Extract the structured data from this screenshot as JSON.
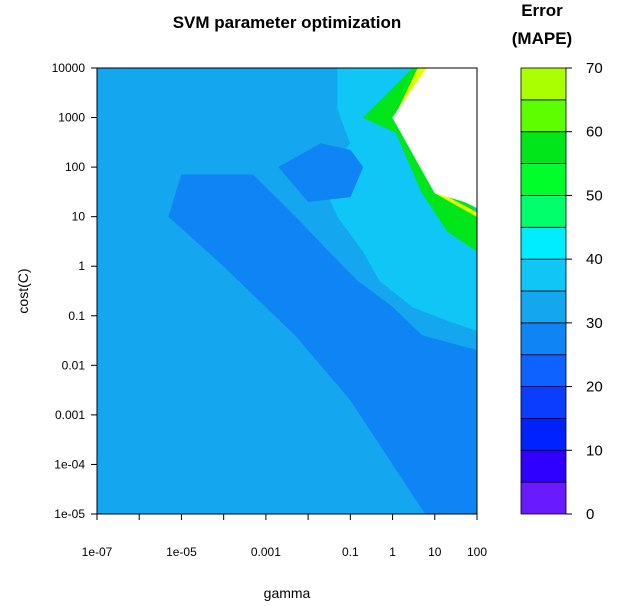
{
  "chart_data": {
    "type": "heatmap",
    "title": "SVM parameter optimization",
    "xlabel": "gamma",
    "ylabel": "cost(C)",
    "colorbar_title": [
      "Error",
      "(MAPE)"
    ],
    "x_scale": "log",
    "y_scale": "log",
    "xlim": [
      1e-07,
      100
    ],
    "ylim": [
      1e-05,
      10000
    ],
    "x_ticks": [
      "1e-07",
      "1e-05",
      "0.001",
      "0.1",
      "1",
      "10",
      "100"
    ],
    "x_tick_values": [
      1e-07,
      1e-05,
      0.001,
      0.1,
      1,
      10,
      100
    ],
    "x_minor_ticks": [
      1e-06,
      0.0001,
      0.01
    ],
    "y_ticks": [
      "1e-05",
      "1e-04",
      "0.001",
      "0.01",
      "0.1",
      "1",
      "10",
      "100",
      "1000",
      "10000"
    ],
    "y_tick_values": [
      1e-05,
      0.0001,
      0.001,
      0.01,
      0.1,
      1,
      10,
      100,
      1000,
      10000
    ],
    "colorbar_levels": [
      0,
      5,
      10,
      15,
      20,
      25,
      30,
      35,
      40,
      45,
      50,
      55,
      60,
      65,
      70
    ],
    "colorbar_ticks": [
      "0",
      "10",
      "20",
      "30",
      "40",
      "50",
      "60",
      "70"
    ],
    "colorbar_tick_values": [
      0,
      10,
      20,
      30,
      40,
      50,
      60,
      70
    ],
    "colorbar_colors": [
      "#6a1aff",
      "#2f00ff",
      "#0022ff",
      "#0a3dff",
      "#0e62ff",
      "#0f85f5",
      "#14a6ef",
      "#0fc6f6",
      "#00ecff",
      "#00ff6a",
      "#00ff2a",
      "#00e61a",
      "#5dff00",
      "#aaff00",
      "#e6ff00"
    ],
    "regions": [
      {
        "range": "30-35",
        "color": "#14a6ef",
        "polygon": [
          [
            1e-07,
            1e-05
          ],
          [
            100,
            1e-05
          ],
          [
            100,
            10000
          ],
          [
            1e-07,
            10000
          ]
        ]
      },
      {
        "range": "35-40",
        "color": "#0fc6f6",
        "polygon": [
          [
            0.05,
            10000
          ],
          [
            100,
            10000
          ],
          [
            100,
            0.05
          ],
          [
            20,
            0.08
          ],
          [
            3,
            0.15
          ],
          [
            0.5,
            0.5
          ],
          [
            0.2,
            2
          ],
          [
            0.05,
            10
          ],
          [
            0.02,
            60
          ],
          [
            0.1,
            300
          ],
          [
            0.05,
            1500
          ]
        ]
      },
      {
        "range": "25-30",
        "color": "#0f85f5",
        "polygon": [
          [
            5e-06,
            10
          ],
          [
            1e-05,
            70
          ],
          [
            0.0005,
            70
          ],
          [
            0.005,
            10
          ],
          [
            0.03,
            2
          ],
          [
            0.15,
            0.5
          ],
          [
            1,
            0.15
          ],
          [
            5,
            0.04
          ],
          [
            100,
            0.02
          ],
          [
            100,
            1e-05
          ],
          [
            6,
            1e-05
          ],
          [
            0.1,
            0.002
          ],
          [
            0.005,
            0.04
          ],
          [
            0.0001,
            1
          ]
        ]
      },
      {
        "range": "25-30",
        "color": "#0f85f5",
        "polygon": [
          [
            0.002,
            100
          ],
          [
            0.02,
            300
          ],
          [
            0.1,
            220
          ],
          [
            0.2,
            100
          ],
          [
            0.1,
            25
          ],
          [
            0.01,
            20
          ]
        ]
      },
      {
        "range": "50-55",
        "color": "#00e61a",
        "polygon": [
          [
            0.2,
            1000
          ],
          [
            0.6,
            2500
          ],
          [
            3,
            10000
          ],
          [
            12,
            10000
          ],
          [
            40,
            80
          ],
          [
            100,
            10
          ],
          [
            100,
            2
          ],
          [
            20,
            5
          ],
          [
            5,
            30
          ],
          [
            1.2,
            500
          ]
        ]
      },
      {
        "range": "65-70",
        "color": "#e6ff00",
        "polygon": [
          [
            1.1,
            1000
          ],
          [
            4,
            10000
          ],
          [
            8,
            10000
          ],
          [
            10,
            30
          ],
          [
            100,
            10
          ],
          [
            100,
            12
          ],
          [
            20,
            25
          ]
        ]
      },
      {
        "range": "none",
        "color": "#ffffff",
        "polygon": [
          [
            1,
            1000
          ],
          [
            6.5,
            10000
          ],
          [
            100,
            10000
          ],
          [
            100,
            15
          ],
          [
            50,
            20
          ],
          [
            10,
            30
          ]
        ]
      }
    ]
  }
}
